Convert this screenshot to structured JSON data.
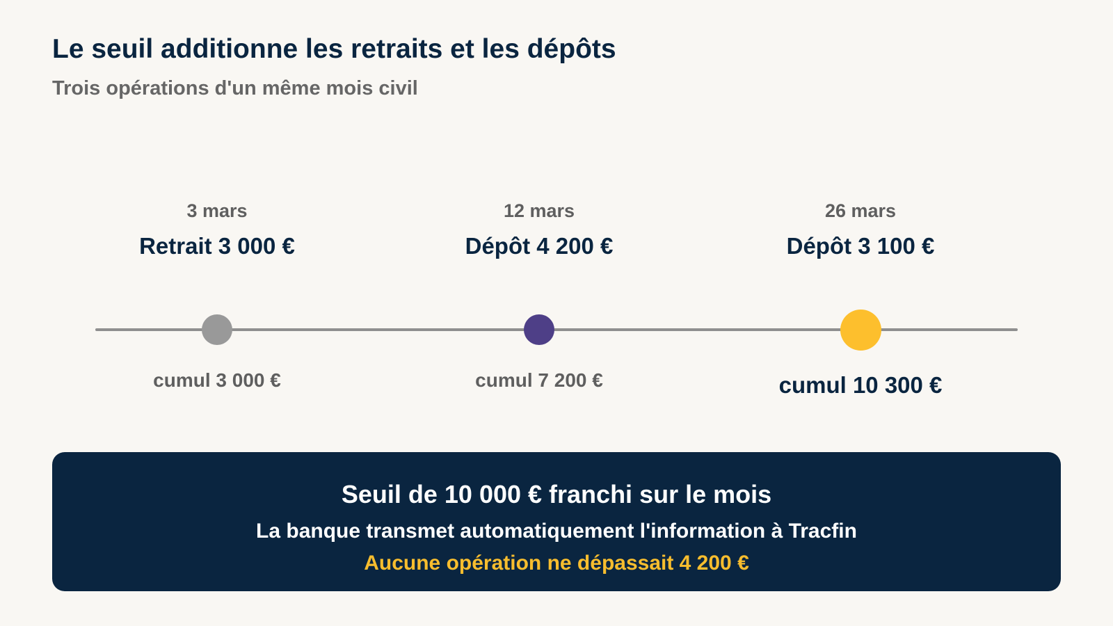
{
  "header": {
    "title": "Le seuil additionne les retraits et les dépôts",
    "subtitle": "Trois opérations d'un même mois civil"
  },
  "events": [
    {
      "date": "3 mars",
      "label": "Retrait 3 000 €",
      "cumul": "cumul 3 000 €",
      "color": "#999999"
    },
    {
      "date": "12 mars",
      "label": "Dépôt 4 200 €",
      "cumul": "cumul 7 200 €",
      "color": "#4e3f87"
    },
    {
      "date": "26 mars",
      "label": "Dépôt 3 100 €",
      "cumul": "cumul 10 300 €",
      "color": "#fdbf2d"
    }
  ],
  "banner": {
    "title": "Seuil de 10 000 € franchi sur le mois",
    "line": "La banque transmet automatiquement l'information à Tracfin",
    "highlight": "Aucune opération ne dépassait 4 200 €"
  },
  "colors": {
    "background": "#f9f7f3",
    "navy": "#0a2540",
    "gray_text": "#5f5f5f",
    "timeline": "#8f8f8f",
    "accent": "#f7bd2e"
  }
}
